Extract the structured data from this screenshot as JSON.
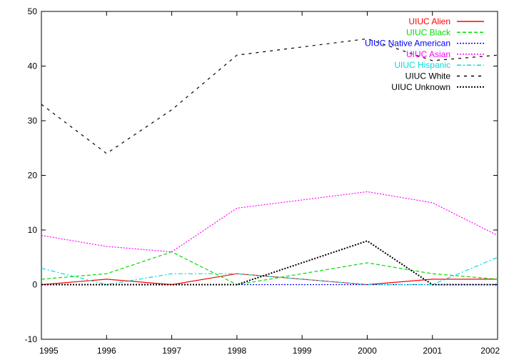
{
  "chart_data": {
    "type": "line",
    "title": "",
    "xlabel": "",
    "ylabel": "",
    "xlim": [
      1995,
      2002
    ],
    "ylim": [
      -10,
      50
    ],
    "x_ticks": [
      "1995",
      "1996",
      "1997",
      "1998",
      "1999",
      "2000",
      "2001",
      "2002"
    ],
    "y_ticks": [
      "-10",
      "0",
      "10",
      "20",
      "30",
      "40",
      "50"
    ],
    "grid": false,
    "legend_position": "top-right",
    "x": [
      1995,
      1996,
      1997,
      1998,
      2000,
      2001,
      2002
    ],
    "series": [
      {
        "name": "UIUC Alien",
        "color": "#ff0000",
        "style": "solid",
        "values": [
          0,
          1,
          0,
          2,
          0,
          1,
          1
        ]
      },
      {
        "name": "UIUC Black",
        "color": "#00dd00",
        "style": "dashed",
        "values": [
          1,
          2,
          6,
          0,
          4,
          2,
          1
        ]
      },
      {
        "name": "UIUC Native American",
        "color": "#0000ff",
        "style": "dotted",
        "values": [
          0,
          0,
          0,
          0,
          0,
          0,
          0
        ]
      },
      {
        "name": "UIUC Asian",
        "color": "#ff00ff",
        "style": "dotted",
        "values": [
          9,
          7,
          6,
          14,
          17,
          15,
          9
        ]
      },
      {
        "name": "UIUC Hispanic",
        "color": "#00dddd",
        "style": "dashdot",
        "values": [
          3,
          0,
          2,
          2,
          0,
          0,
          5
        ]
      },
      {
        "name": "UIUC White",
        "color": "#000000",
        "style": "longdash",
        "values": [
          33,
          24,
          32,
          42,
          45,
          41,
          42
        ]
      },
      {
        "name": "UIUC Unknown",
        "color": "#000000",
        "style": "densedot",
        "values": [
          0,
          0,
          0,
          0,
          8,
          0,
          0
        ]
      }
    ]
  }
}
